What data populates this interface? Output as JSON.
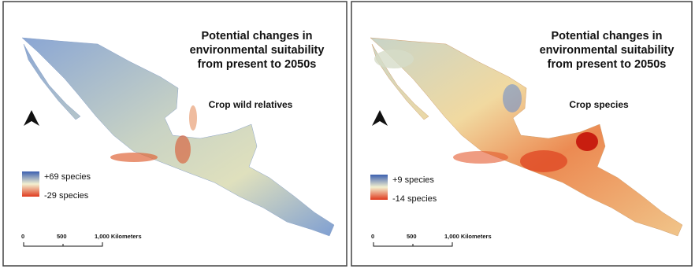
{
  "panels": [
    {
      "title_lines": [
        "Potential changes in",
        "environmental suitability",
        "from present to 2050s"
      ],
      "subtitle": "Crop wild relatives",
      "legend": {
        "high": "+69 species",
        "low": "-29 species"
      },
      "scale_labels": [
        "0",
        "500",
        "1,000 Kilometers"
      ]
    },
    {
      "title_lines": [
        "Potential changes in",
        "environmental suitability",
        "from present to 2050s"
      ],
      "subtitle": "Crop species",
      "legend": {
        "high": "+9 species",
        "low": "-14 species"
      },
      "scale_labels": [
        "0",
        "500",
        "1,000 Kilometers"
      ]
    }
  ]
}
